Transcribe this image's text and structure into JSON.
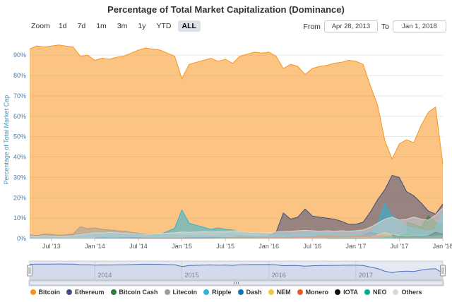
{
  "title": "Percentage of Total Market Capitalization (Dominance)",
  "toolbar": {
    "zoom_label": "Zoom",
    "zoom_buttons": [
      "1d",
      "7d",
      "1m",
      "3m",
      "1y",
      "YTD",
      "ALL"
    ],
    "active_zoom": "ALL",
    "from_label": "From",
    "from_value": "Apr 28, 2013",
    "to_label": "To",
    "to_value": "Jan 1, 2018"
  },
  "colors": {
    "grid": "#e6e6e6",
    "axis_line": "#c9c9c9",
    "tick_mark": "#c9c9c9",
    "y_tick_label": "#4a7ba6",
    "x_tick_label": "#555555",
    "y_axis_title": "#3a96b5",
    "navigator_line": "#4d6db5",
    "navigator_fill": "rgba(77,109,181,0.12)",
    "navigator_mask": "rgba(91,121,188,0.16)",
    "navigator_border": "#cccccc",
    "scrollbar_track": "#f2f2f2",
    "scrollbar_thumb": "#e6e9f2",
    "handle_fill": "#f2f2f2",
    "handle_stroke": "#999999"
  },
  "chart_data": {
    "type": "area",
    "stacked": false,
    "title": "Percentage of Total Market Capitalization (Dominance)",
    "xlabel": "",
    "ylabel": "Percentage of Total Market Cap",
    "ylim": [
      0,
      97
    ],
    "y_ticks": [
      0,
      10,
      20,
      30,
      40,
      50,
      60,
      70,
      80,
      90
    ],
    "y_tick_suffix": "%",
    "x_unit": "month-index from Apr 2013",
    "x_points": 58,
    "x_start": "Apr 28, 2013",
    "x_end": "Jan 1, 2018",
    "x_tick_indices": [
      3,
      9,
      15,
      21,
      27,
      33,
      39,
      45,
      51,
      57
    ],
    "x_tick_labels": [
      "Jul '13",
      "Jan '14",
      "Jul '14",
      "Jan '15",
      "Jul '15",
      "Jan '16",
      "Jul '16",
      "Jan '17",
      "Jul '17",
      "Jan '18"
    ],
    "grid": "horizontal",
    "legend_position": "bottom",
    "fill_opacity": 0.55,
    "series": [
      {
        "name": "Bitcoin",
        "color": "#f7941d",
        "start_index": 0,
        "values": [
          93.0,
          94.5,
          94.0,
          94.5,
          95.0,
          94.5,
          94.0,
          89.5,
          90.0,
          87.5,
          88.5,
          88.0,
          89.0,
          89.5,
          91.0,
          92.5,
          93.5,
          93.0,
          92.5,
          91.0,
          89.5,
          78.5,
          85.5,
          86.5,
          87.5,
          88.5,
          87.0,
          88.0,
          86.0,
          89.5,
          90.5,
          91.5,
          91.0,
          91.5,
          89.5,
          83.5,
          85.5,
          84.5,
          80.5,
          83.5,
          84.5,
          85.0,
          86.0,
          86.5,
          87.5,
          87.0,
          85.5,
          75.0,
          65.5,
          48.0,
          39.0,
          46.5,
          48.5,
          47.0,
          55.5,
          62.0,
          64.5,
          36.5
        ]
      },
      {
        "name": "Ethereum",
        "color": "#454e7e",
        "start_index": 28,
        "values": [
          0.5,
          1.2,
          0.8,
          0.9,
          0.9,
          1.4,
          3.0,
          12.5,
          9.5,
          10.5,
          14.5,
          11.0,
          10.5,
          10.0,
          9.5,
          8.5,
          7.0,
          7.0,
          8.0,
          13.0,
          19.0,
          24.0,
          31.0,
          30.0,
          23.0,
          21.0,
          17.5,
          13.5,
          12.0,
          17.0
        ]
      },
      {
        "name": "Bitcoin Cash",
        "color": "#2e7d32",
        "start_index": 52,
        "values": [
          8.0,
          7.0,
          5.5,
          11.0,
          8.0,
          6.5
        ]
      },
      {
        "name": "Litecoin",
        "color": "#9e9e9e",
        "start_index": 0,
        "values": [
          1.8,
          1.5,
          2.2,
          2.0,
          1.6,
          1.8,
          2.2,
          5.8,
          4.8,
          5.2,
          4.5,
          4.2,
          3.8,
          3.5,
          3.0,
          2.6,
          2.2,
          2.0,
          1.9,
          1.8,
          1.7,
          1.6,
          1.5,
          1.4,
          1.4,
          1.3,
          1.3,
          2.3,
          2.0,
          1.6,
          1.4,
          1.3,
          1.2,
          1.2,
          1.1,
          1.0,
          1.0,
          1.1,
          1.0,
          1.1,
          1.1,
          1.0,
          1.0,
          1.0,
          1.1,
          1.2,
          1.1,
          1.5,
          2.4,
          3.0,
          2.6,
          2.4,
          2.2,
          2.0,
          1.8,
          1.6,
          1.8,
          1.6
        ]
      },
      {
        "name": "Ripple",
        "color": "#29b6d8",
        "start_index": 0,
        "values": [
          1.2,
          1.0,
          0.8,
          0.9,
          0.8,
          0.9,
          1.0,
          2.2,
          2.0,
          2.8,
          2.5,
          3.0,
          2.8,
          2.6,
          2.2,
          2.0,
          1.6,
          1.8,
          2.0,
          3.5,
          5.0,
          14.0,
          7.5,
          6.5,
          5.5,
          4.5,
          5.2,
          4.5,
          4.2,
          3.2,
          2.8,
          2.6,
          2.4,
          2.2,
          2.0,
          1.8,
          2.0,
          2.2,
          2.6,
          2.8,
          2.6,
          2.4,
          2.5,
          2.4,
          2.2,
          2.0,
          1.9,
          2.4,
          7.5,
          17.0,
          11.0,
          8.5,
          6.0,
          5.0,
          4.2,
          3.4,
          4.5,
          13.5
        ]
      },
      {
        "name": "Dash",
        "color": "#1077b4",
        "start_index": 9,
        "values": [
          0.2,
          0.4,
          0.3,
          0.3,
          0.4,
          0.5,
          0.4,
          0.3,
          0.3,
          0.3,
          0.3,
          0.3,
          0.3,
          0.4,
          0.5,
          0.5,
          0.6,
          0.5,
          0.4,
          0.4,
          0.4,
          0.4,
          0.3,
          0.4,
          0.5,
          0.6,
          0.5,
          0.6,
          0.7,
          0.7,
          0.8,
          0.8,
          0.8,
          0.8,
          0.8,
          0.9,
          1.0,
          1.6,
          3.0,
          2.2,
          1.6,
          1.4,
          1.3,
          1.2,
          1.1,
          1.2,
          1.4,
          1.3,
          1.2
        ]
      },
      {
        "name": "NEM",
        "color": "#efc844",
        "start_index": 24,
        "values": [
          0.1,
          0.1,
          0.1,
          0.1,
          0.1,
          0.1,
          0.1,
          0.1,
          0.1,
          0.2,
          0.2,
          0.2,
          0.2,
          0.2,
          0.2,
          0.3,
          0.3,
          0.3,
          0.3,
          0.3,
          0.3,
          0.3,
          0.4,
          0.6,
          1.8,
          3.0,
          1.8,
          1.6,
          1.4,
          1.2,
          1.0,
          0.9,
          0.8,
          1.0
        ]
      },
      {
        "name": "Monero",
        "color": "#e65c26",
        "start_index": 14,
        "values": [
          0.1,
          0.1,
          0.1,
          0.1,
          0.1,
          0.1,
          0.1,
          0.1,
          0.1,
          0.1,
          0.1,
          0.1,
          0.2,
          0.2,
          0.3,
          0.3,
          0.2,
          0.2,
          0.3,
          0.4,
          0.5,
          0.4,
          0.4,
          0.5,
          0.6,
          0.6,
          1.4,
          1.6,
          1.2,
          1.0,
          1.0,
          1.2,
          1.4,
          1.6,
          1.2,
          1.0,
          0.9,
          0.8,
          0.8,
          0.9,
          0.8,
          0.9,
          1.2,
          1.0
        ]
      },
      {
        "name": "IOTA",
        "color": "#111111",
        "start_index": 50,
        "values": [
          1.6,
          1.0,
          0.8,
          0.9,
          0.8,
          1.2,
          3.0,
          2.0
        ]
      },
      {
        "name": "NEO",
        "color": "#00af92",
        "start_index": 41,
        "values": [
          0.1,
          0.1,
          0.1,
          0.1,
          0.1,
          0.1,
          0.2,
          0.3,
          0.5,
          0.8,
          1.2,
          2.4,
          1.5,
          1.2,
          1.0,
          1.1,
          1.3
        ]
      },
      {
        "name": "Others",
        "color": "#d9d9d9",
        "start_index": 0,
        "values": [
          1.2,
          1.0,
          1.2,
          1.0,
          0.9,
          1.0,
          1.2,
          2.0,
          2.2,
          2.8,
          2.6,
          3.0,
          2.8,
          2.6,
          2.4,
          2.2,
          2.0,
          2.2,
          2.4,
          2.6,
          2.8,
          3.2,
          3.0,
          3.2,
          3.4,
          3.2,
          3.4,
          3.2,
          3.8,
          3.4,
          3.0,
          2.8,
          3.0,
          2.8,
          3.2,
          3.4,
          3.6,
          3.8,
          4.0,
          3.8,
          3.6,
          3.8,
          3.6,
          3.8,
          3.6,
          3.8,
          4.2,
          5.5,
          7.5,
          9.5,
          10.5,
          9.0,
          9.5,
          10.5,
          9.5,
          9.0,
          11.5,
          15.0
        ]
      }
    ]
  },
  "navigator": {
    "year_labels": [
      "2014",
      "2015",
      "2016",
      "2017"
    ],
    "year_indices": [
      9,
      21,
      33,
      45
    ]
  }
}
